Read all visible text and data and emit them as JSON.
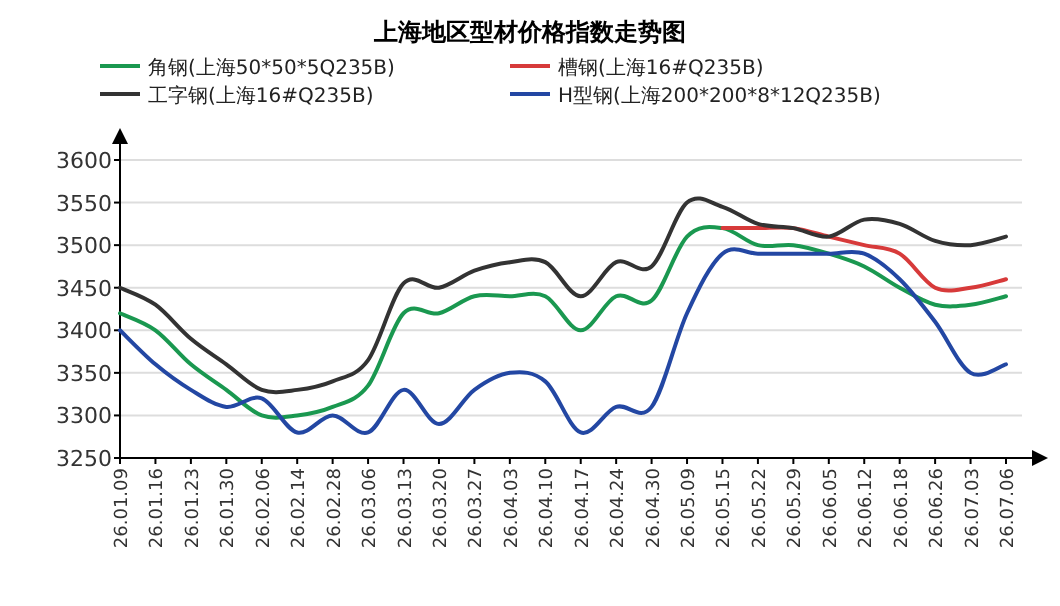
{
  "chart_data": {
    "type": "line",
    "title": "上海地区型材价格指数走势图",
    "categories": [
      "26.01.09",
      "26.01.16",
      "26.01.23",
      "26.01.30",
      "26.02.06",
      "26.02.14",
      "26.02.28",
      "26.03.06",
      "26.03.13",
      "26.03.20",
      "26.03.27",
      "26.04.03",
      "26.04.10",
      "26.04.17",
      "26.04.24",
      "26.04.30",
      "26.05.09",
      "26.05.15",
      "26.05.22",
      "26.05.29",
      "26.06.05",
      "26.06.12",
      "26.06.18",
      "26.06.26",
      "26.07.03",
      "26.07.06"
    ],
    "series": [
      {
        "name": "角钢(上海50*50*5Q235B)",
        "color": "#1a9850",
        "values": [
          3420,
          3400,
          3360,
          3330,
          3300,
          3300,
          3310,
          3335,
          3420,
          3420,
          3440,
          3440,
          3440,
          3400,
          3440,
          3435,
          3510,
          3520,
          3500,
          3500,
          3490,
          3475,
          3450,
          3430,
          3430,
          3440
        ]
      },
      {
        "name": "槽钢(上海16#Q235B)",
        "color": "#d73a3a",
        "values": [
          null,
          null,
          null,
          null,
          null,
          null,
          null,
          null,
          null,
          null,
          null,
          null,
          null,
          null,
          null,
          null,
          null,
          3520,
          3520,
          3520,
          3510,
          3500,
          3490,
          3450,
          3450,
          3460
        ]
      },
      {
        "name": "工字钢(上海16#Q235B)",
        "color": "#333333",
        "values": [
          3450,
          3430,
          3390,
          3360,
          3330,
          3330,
          3340,
          3365,
          3455,
          3450,
          3470,
          3480,
          3480,
          3440,
          3480,
          3475,
          3550,
          3545,
          3525,
          3520,
          3510,
          3530,
          3525,
          3505,
          3500,
          3510
        ]
      },
      {
        "name": "H型钢(上海200*200*8*12Q235B)",
        "color": "#2347a3",
        "values": [
          3400,
          3360,
          3330,
          3310,
          3320,
          3280,
          3300,
          3280,
          3330,
          3290,
          3330,
          3350,
          3340,
          3280,
          3310,
          3310,
          3420,
          3490,
          3490,
          3490,
          3490,
          3490,
          3460,
          3410,
          3350,
          3360
        ]
      }
    ],
    "ylim": [
      3250,
      3600
    ],
    "yticks": [
      3250,
      3300,
      3350,
      3400,
      3450,
      3500,
      3550,
      3600
    ],
    "grid": "y",
    "legend": "top",
    "line_style": "solid",
    "marker": "none"
  }
}
